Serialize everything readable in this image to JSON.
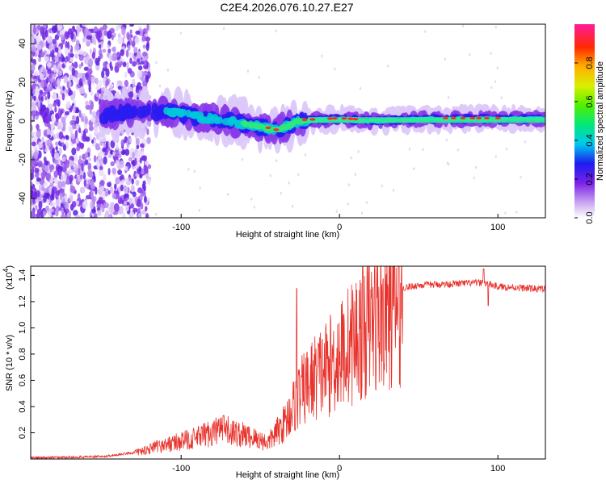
{
  "title": "C2E4.2026.076.10.27.E27",
  "chart_data": [
    {
      "type": "heatmap",
      "name": "spectrogram",
      "xlabel": "Height of straight line (km)",
      "ylabel": "Frequency (Hz)",
      "xlim": [
        -195,
        130
      ],
      "ylim": [
        -50,
        50
      ],
      "x_ticks": [
        -100,
        0,
        100
      ],
      "y_ticks": [
        -40,
        -20,
        0,
        20,
        40
      ],
      "colorbar": {
        "label": "Normalized spectral amplitude",
        "range": [
          0,
          1
        ],
        "ticks": [
          0.0,
          0.2,
          0.4,
          0.6,
          0.8
        ]
      },
      "signal_band": [
        {
          "x": -170,
          "freq": 0
        },
        {
          "x": -140,
          "freq": 4
        },
        {
          "x": -110,
          "freq": 5
        },
        {
          "x": -90,
          "freq": 2
        },
        {
          "x": -70,
          "freq": 0
        },
        {
          "x": -50,
          "freq": -3
        },
        {
          "x": -40,
          "freq": -5
        },
        {
          "x": -25,
          "freq": 0
        },
        {
          "x": 0,
          "freq": 1
        },
        {
          "x": 20,
          "freq": 0
        },
        {
          "x": 60,
          "freq": 1
        },
        {
          "x": 100,
          "freq": 1
        },
        {
          "x": 130,
          "freq": 1
        }
      ]
    },
    {
      "type": "line",
      "name": "snr",
      "xlabel": "Height of straight line (km)",
      "ylabel": "SNR (10 * v/v)",
      "y_multiplier": "(x10",
      "y_multiplier_exp": "4",
      "y_multiplier_close": ")",
      "xlim": [
        -195,
        130
      ],
      "ylim": [
        0,
        1.47
      ],
      "x_ticks": [
        -100,
        0,
        100
      ],
      "y_ticks": [
        "0.2",
        "0.4",
        "0.6",
        "0.8",
        "1.0",
        "1.2",
        "1.4"
      ],
      "series_color": "#e8322c",
      "envelope": [
        {
          "x": -195,
          "y": 0.01
        },
        {
          "x": -150,
          "y": 0.02
        },
        {
          "x": -130,
          "y": 0.05
        },
        {
          "x": -110,
          "y": 0.12
        },
        {
          "x": -90,
          "y": 0.18
        },
        {
          "x": -75,
          "y": 0.25
        },
        {
          "x": -60,
          "y": 0.2
        },
        {
          "x": -45,
          "y": 0.14
        },
        {
          "x": -35,
          "y": 0.3
        },
        {
          "x": -25,
          "y": 0.55
        },
        {
          "x": -15,
          "y": 0.7
        },
        {
          "x": -5,
          "y": 0.8
        },
        {
          "x": 5,
          "y": 0.95
        },
        {
          "x": 20,
          "y": 1.15
        },
        {
          "x": 35,
          "y": 1.3
        },
        {
          "x": 50,
          "y": 1.33
        },
        {
          "x": 70,
          "y": 1.34
        },
        {
          "x": 90,
          "y": 1.35
        },
        {
          "x": 100,
          "y": 1.32
        },
        {
          "x": 130,
          "y": 1.3
        }
      ],
      "peaks": [
        {
          "x": -27,
          "y": 1.3
        },
        {
          "x": 91,
          "y": 1.45
        },
        {
          "x": 94,
          "y": 1.17
        }
      ]
    }
  ]
}
